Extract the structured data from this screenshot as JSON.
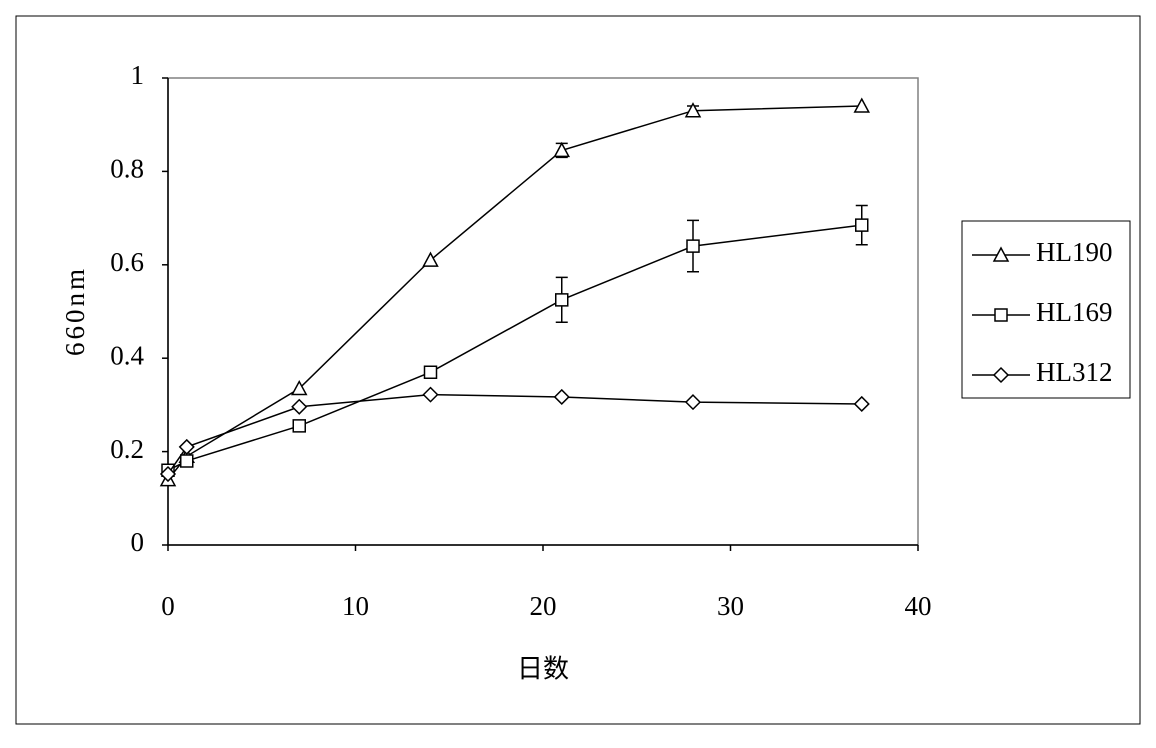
{
  "chart_data": {
    "type": "line",
    "xlabel": "日数",
    "ylabel": "660nm",
    "xlim": [
      0,
      40
    ],
    "xticks": [
      0,
      10,
      20,
      30,
      40
    ],
    "ylim": [
      0,
      1
    ],
    "yticks": [
      0,
      0.2,
      0.4,
      0.6,
      0.8,
      1
    ],
    "legend": "right",
    "series": [
      {
        "name": "HL190",
        "color": "#000000",
        "marker": "triangle",
        "x": [
          0,
          1,
          7,
          14,
          21,
          28,
          37
        ],
        "values": [
          0.14,
          0.19,
          0.335,
          0.61,
          0.845,
          0.93,
          0.94
        ],
        "errors": [
          null,
          null,
          null,
          null,
          0.015,
          0.01,
          null
        ]
      },
      {
        "name": "HL169",
        "color": "#000000",
        "marker": "square",
        "x": [
          0,
          1,
          7,
          14,
          21,
          28,
          37
        ],
        "values": [
          0.16,
          0.18,
          0.255,
          0.37,
          0.525,
          0.64,
          0.685
        ],
        "errors": [
          null,
          null,
          null,
          0.01,
          0.048,
          0.055,
          0.042
        ]
      },
      {
        "name": "HL312",
        "color": "#000000",
        "marker": "diamond",
        "x": [
          0,
          1,
          7,
          14,
          21,
          28,
          37
        ],
        "values": [
          0.152,
          0.21,
          0.296,
          0.322,
          0.317,
          0.306,
          0.302
        ],
        "errors": [
          null,
          null,
          null,
          null,
          null,
          null,
          null
        ]
      }
    ]
  }
}
